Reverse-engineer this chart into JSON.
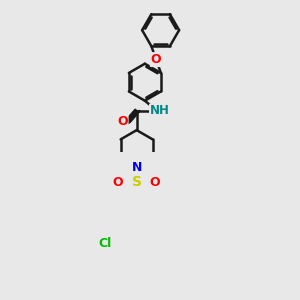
{
  "bg_color": "#e8e8e8",
  "bond_color": "#1a1a1a",
  "atom_colors": {
    "O": "#ff0000",
    "N": "#0000ee",
    "N_amide": "#008888",
    "S": "#cccc00",
    "Cl": "#00bb00",
    "H": "#777777",
    "C": "#1a1a1a"
  },
  "bond_width": 1.8,
  "font_size": 9,
  "fig_width": 3.0,
  "fig_height": 3.0,
  "dpi": 100
}
